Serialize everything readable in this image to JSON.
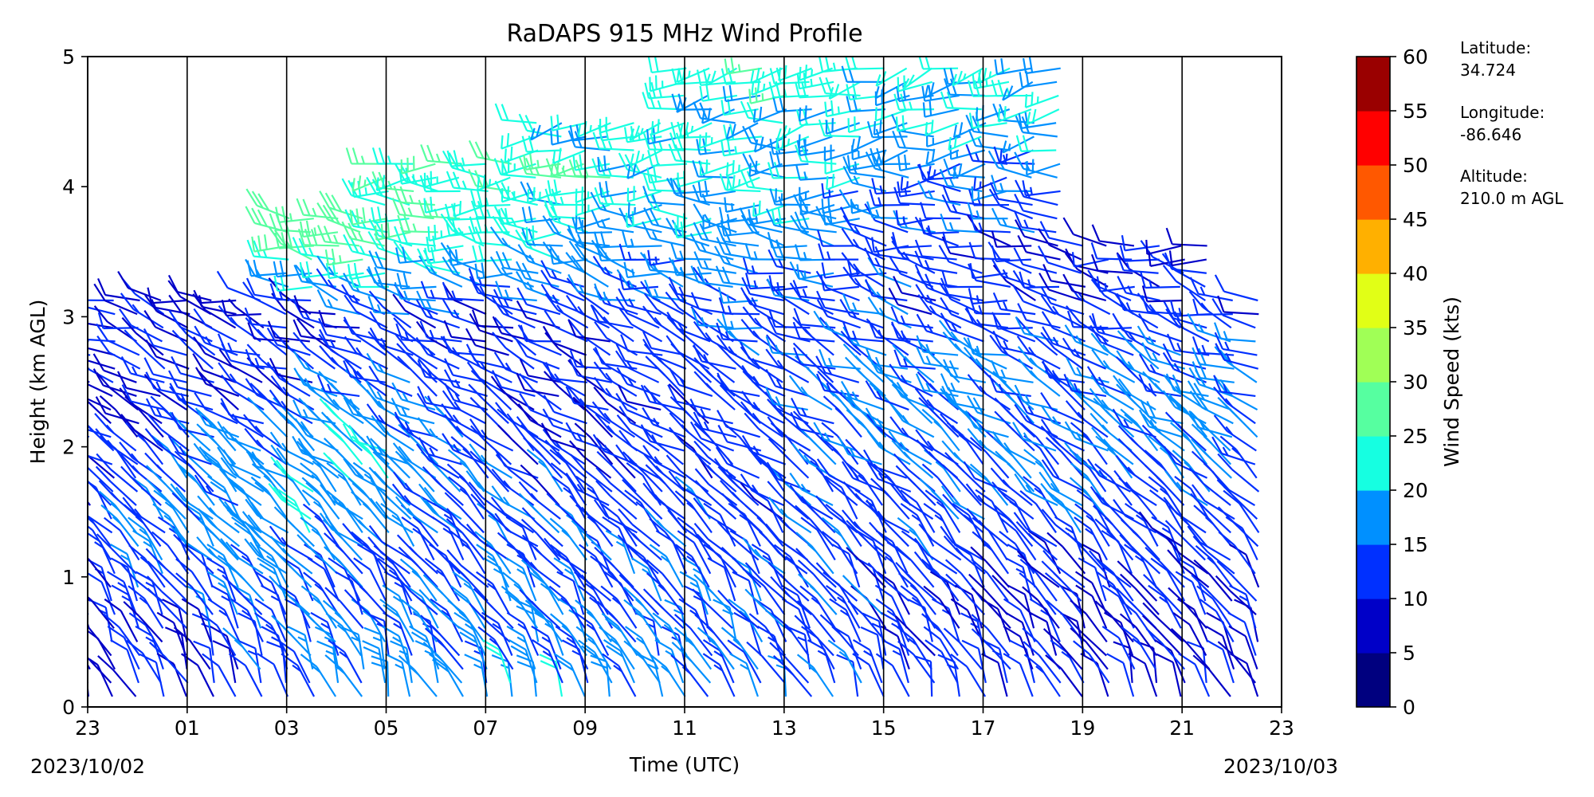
{
  "chart_data": {
    "type": "wind_barb_profile",
    "title": "RaDAPS 915 MHz Wind Profile",
    "xlabel": "Time (UTC)",
    "ylabel": "Height (km AGL)",
    "x_tick_labels": [
      "23",
      "01",
      "03",
      "05",
      "07",
      "09",
      "11",
      "13",
      "15",
      "17",
      "19",
      "21",
      "23"
    ],
    "y_tick_labels": [
      "0",
      "1",
      "2",
      "3",
      "4",
      "5"
    ],
    "ylim": [
      0,
      5
    ],
    "start_date": "2023/10/02",
    "end_date": "2023/10/03",
    "colorbar": {
      "label": "Wind Speed (kts)",
      "ticks": [
        "0",
        "5",
        "10",
        "15",
        "20",
        "25",
        "30",
        "35",
        "40",
        "45",
        "50",
        "55",
        "60"
      ],
      "colors": [
        "#00007f",
        "#0000c8",
        "#0030ff",
        "#0090ff",
        "#16ffe1",
        "#56ffa0",
        "#a0ff56",
        "#e1ff16",
        "#ffb000",
        "#ff5800",
        "#ff0000",
        "#9a0000"
      ]
    },
    "site_info": {
      "latitude_label": "Latitude:",
      "latitude": "34.724",
      "longitude_label": "Longitude:",
      "longitude": "-86.646",
      "altitude_label": "Altitude:",
      "altitude": "210.0 m AGL"
    },
    "profile_speeds_kts": [
      {
        "time": "23:00",
        "h_km": [
          0.2,
          0.6,
          1.0,
          1.4,
          1.8,
          2.2,
          2.6
        ],
        "speed": [
          9,
          10,
          11,
          12,
          11,
          10,
          9
        ]
      },
      {
        "time": "03:00",
        "h_km": [
          0.2,
          0.6,
          1.0,
          1.4,
          1.8,
          2.2,
          2.6,
          3.0
        ],
        "speed": [
          12,
          14,
          16,
          19,
          17,
          13,
          11,
          10
        ]
      },
      {
        "time": "05:00",
        "h_km": [
          0.2,
          0.6,
          1.0,
          1.4,
          1.8,
          2.2,
          2.6,
          3.0,
          3.4,
          3.7
        ],
        "speed": [
          16,
          14,
          12,
          19,
          21,
          18,
          14,
          12,
          24,
          28
        ]
      },
      {
        "time": "08:00",
        "h_km": [
          0.2,
          0.6,
          1.0,
          1.4,
          1.8,
          2.2,
          2.6,
          3.0,
          3.4,
          3.8,
          4.1
        ],
        "speed": [
          18,
          16,
          14,
          13,
          12,
          11,
          10,
          12,
          19,
          23,
          25
        ]
      },
      {
        "time": "11:00",
        "h_km": [
          0.2,
          0.6,
          1.0,
          1.4,
          1.8,
          2.8,
          3.2,
          3.6,
          4.0,
          4.4
        ],
        "speed": [
          17,
          15,
          14,
          13,
          12,
          12,
          15,
          18,
          20,
          22
        ]
      },
      {
        "time": "13:00",
        "h_km": [
          0.2,
          0.6,
          1.0,
          1.4,
          1.8,
          3.0,
          3.4,
          3.8,
          4.2,
          4.6,
          5.0
        ],
        "speed": [
          14,
          13,
          13,
          12,
          12,
          14,
          17,
          19,
          21,
          22,
          23
        ]
      },
      {
        "time": "16:00",
        "h_km": [
          0.2,
          0.6,
          1.0,
          1.4,
          1.8,
          2.2,
          2.6,
          3.0,
          3.4,
          4.0,
          4.6,
          5.0
        ],
        "speed": [
          12,
          12,
          13,
          14,
          15,
          17,
          16,
          13,
          12,
          15,
          20,
          22
        ]
      },
      {
        "time": "19:00",
        "h_km": [
          0.2,
          0.6,
          1.0,
          1.4,
          1.8,
          2.2,
          2.6,
          3.0,
          3.4
        ],
        "speed": [
          11,
          11,
          12,
          13,
          14,
          15,
          14,
          12,
          10
        ]
      },
      {
        "time": "22:00",
        "h_km": [
          0.2,
          0.6,
          1.0,
          1.4,
          1.8,
          2.2,
          2.6,
          3.0
        ],
        "speed": [
          10,
          11,
          12,
          13,
          15,
          17,
          15,
          12
        ]
      }
    ]
  }
}
